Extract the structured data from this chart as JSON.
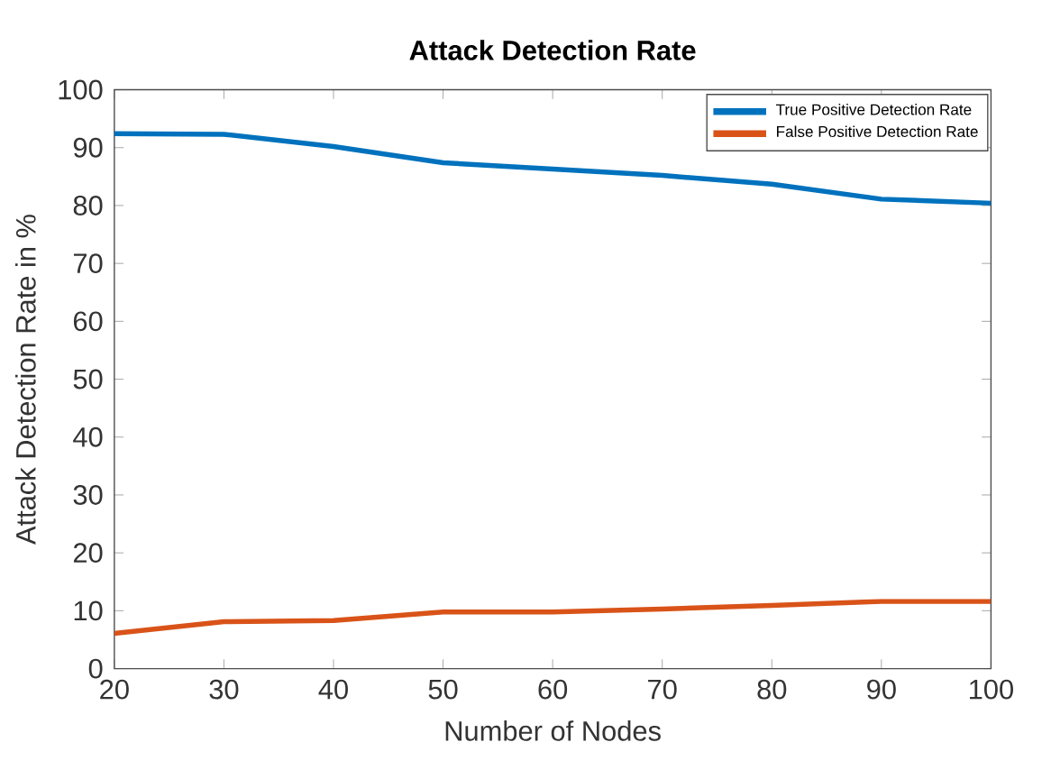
{
  "chart_data": {
    "type": "line",
    "title": "Attack Detection Rate",
    "xlabel": "Number of Nodes",
    "ylabel": "Attack Detection Rate in %",
    "x": [
      20,
      30,
      40,
      50,
      60,
      70,
      80,
      90,
      100
    ],
    "series": [
      {
        "name": "True Positive Detection Rate",
        "color": "#0072bd",
        "values": [
          92.4,
          92.3,
          90.2,
          87.4,
          86.3,
          85.2,
          83.7,
          81.1,
          80.4
        ]
      },
      {
        "name": "False Positive Detection Rate",
        "color": "#d95319",
        "values": [
          6.1,
          8.1,
          8.3,
          9.8,
          9.8,
          10.3,
          10.9,
          11.6,
          11.6
        ]
      }
    ],
    "xlim": [
      20,
      100
    ],
    "ylim": [
      0,
      100
    ],
    "xticks": [
      20,
      30,
      40,
      50,
      60,
      70,
      80,
      90,
      100
    ],
    "yticks": [
      0,
      10,
      20,
      30,
      40,
      50,
      60,
      70,
      80,
      90,
      100
    ],
    "legend": "top right",
    "marker": "none",
    "line_style": "solid"
  }
}
